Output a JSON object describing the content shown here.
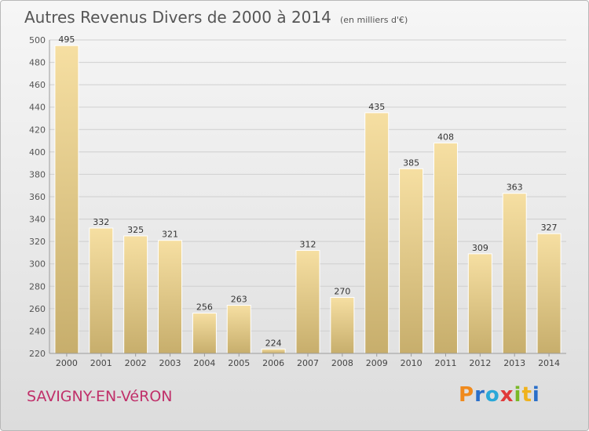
{
  "chart_data": {
    "type": "bar",
    "title": "Autres Revenus Divers de 2000 à 2014",
    "subtitle": "(en milliers d'€)",
    "categories": [
      "2000",
      "2001",
      "2002",
      "2003",
      "2004",
      "2005",
      "2006",
      "2007",
      "2008",
      "2009",
      "2010",
      "2011",
      "2012",
      "2013",
      "2014"
    ],
    "values": [
      495,
      332,
      325,
      321,
      256,
      263,
      224,
      312,
      270,
      435,
      385,
      408,
      309,
      363,
      327
    ],
    "ylim": [
      220,
      500
    ],
    "yticks": [
      220,
      240,
      260,
      280,
      300,
      320,
      340,
      360,
      380,
      400,
      420,
      440,
      460,
      480,
      500
    ],
    "grid": true,
    "data_labels": true,
    "colors": {
      "bar_light": "#f6dfa2",
      "bar_dark": "#c7ae6c",
      "bar_edge": "#ffffff",
      "grid": "#cfcfcf"
    }
  },
  "footer": {
    "commune": "SAVIGNY-EN-VéRON"
  },
  "logo": {
    "text": "Proxiti",
    "letters": [
      "P",
      "r",
      "o",
      "x",
      "i",
      "t",
      "i"
    ],
    "colors": [
      "#f08a1c",
      "#2a6fc9",
      "#2aa8d8",
      "#e03a3a",
      "#7ab828",
      "#f0b21c",
      "#2a6fc9"
    ]
  }
}
